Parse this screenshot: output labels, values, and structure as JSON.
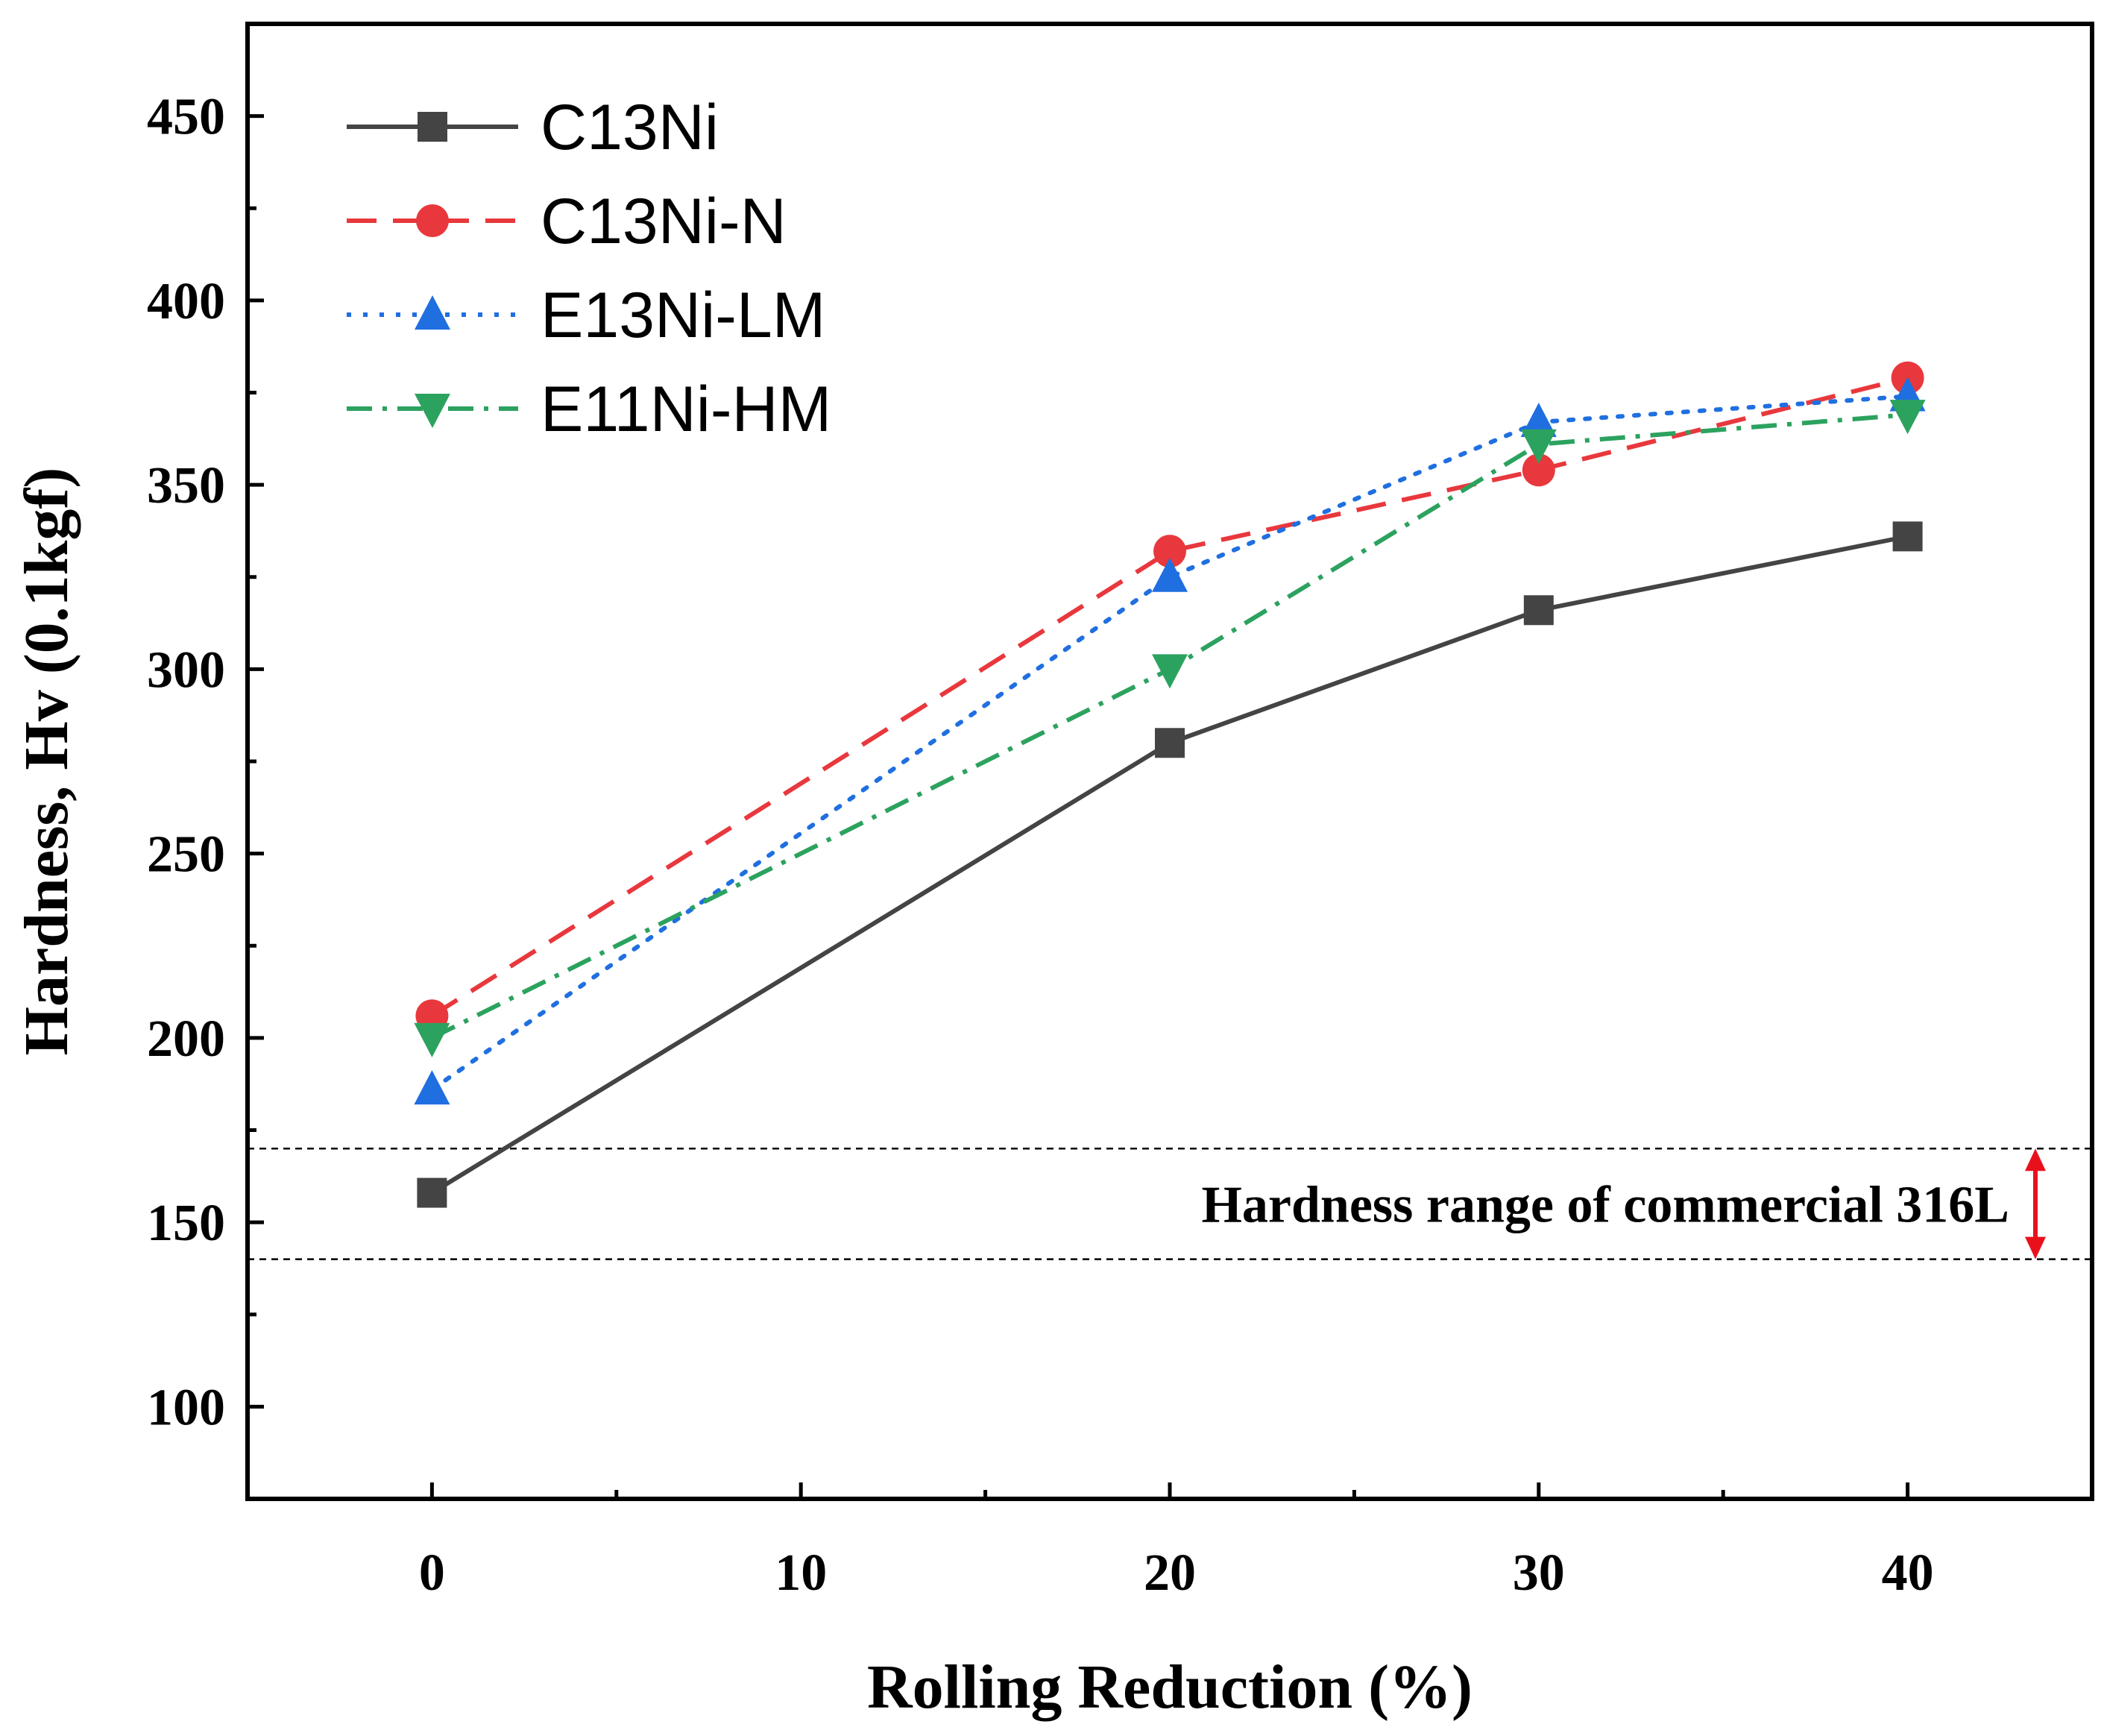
{
  "chart_data": {
    "type": "line",
    "xlabel": "Rolling Reduction (%)",
    "ylabel": "Hardness, Hv (0.1kgf)",
    "xlim": [
      -5,
      45
    ],
    "ylim": [
      75,
      475
    ],
    "x_ticks": [
      0,
      10,
      20,
      30,
      40
    ],
    "y_ticks": [
      100,
      150,
      200,
      250,
      300,
      350,
      400,
      450
    ],
    "x_tick_labels": [
      "0",
      "10",
      "20",
      "30",
      "40"
    ],
    "y_tick_labels": [
      "100",
      "150",
      "200",
      "250",
      "300",
      "350",
      "400",
      "450"
    ],
    "grid": false,
    "legend_position": "top-left",
    "series": [
      {
        "name": "C13Ni",
        "x": [
          0,
          20,
          30,
          40
        ],
        "y": [
          158,
          280,
          316,
          336
        ],
        "color": "#444444",
        "dash": "solid",
        "marker": "square"
      },
      {
        "name": "C13Ni-N",
        "x": [
          0,
          20,
          30,
          40
        ],
        "y": [
          206,
          332,
          354,
          379
        ],
        "color": "#e8383d",
        "dash": "dashed",
        "marker": "circle"
      },
      {
        "name": "E13Ni-LM",
        "x": [
          0,
          20,
          30,
          40
        ],
        "y": [
          186,
          325,
          367,
          374
        ],
        "color": "#1f6fe0",
        "dash": "dotted",
        "marker": "triangle-up"
      },
      {
        "name": "E11Ni-HM",
        "x": [
          0,
          20,
          30,
          40
        ],
        "y": [
          200,
          300,
          361,
          369
        ],
        "color": "#2ca25f",
        "dash": "dashdot",
        "marker": "triangle-down"
      }
    ],
    "reference_lines": [
      {
        "y": 170,
        "color": "#000000",
        "style": "dotted"
      },
      {
        "y": 140,
        "color": "#000000",
        "style": "dotted"
      }
    ],
    "annotation": {
      "text": "Hardness range of commercial 316L",
      "y_from": 140,
      "y_to": 170,
      "arrow_color": "#e8111b"
    }
  }
}
